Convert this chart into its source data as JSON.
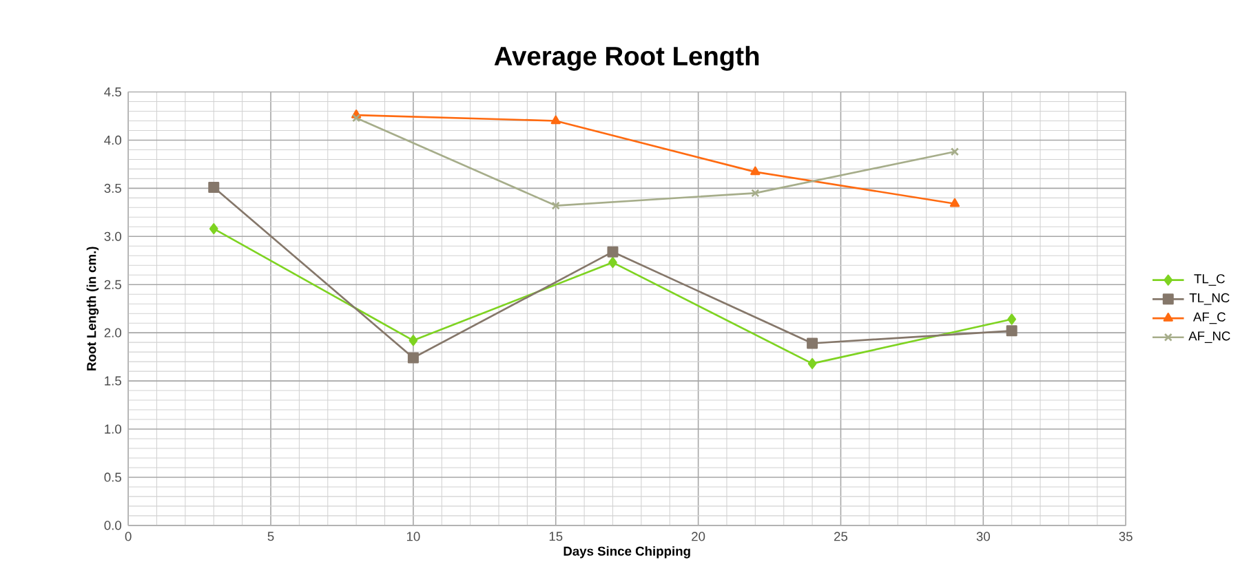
{
  "chart_data": {
    "type": "line",
    "title": "Average Root Length",
    "xlabel": "Days Since Chipping",
    "ylabel": "Root Length (in cm.)",
    "xlim": [
      0,
      35
    ],
    "xticks": [
      0,
      5,
      10,
      15,
      20,
      25,
      30,
      35
    ],
    "ylim": [
      0,
      4.5
    ],
    "yticks": [
      {
        "value": 0,
        "label": "0.0"
      },
      {
        "value": 0.5,
        "label": "0.5"
      },
      {
        "value": 1,
        "label": "1.0"
      },
      {
        "value": 1.5,
        "label": "1.5"
      },
      {
        "value": 2,
        "label": "2.0"
      },
      {
        "value": 2.5,
        "label": "2.5"
      },
      {
        "value": 3,
        "label": "3.0"
      },
      {
        "value": 3.5,
        "label": "3.5"
      },
      {
        "value": 4,
        "label": "4.0"
      },
      {
        "value": 4.5,
        "label": "4.5"
      }
    ],
    "grid": true,
    "legend": "right",
    "series": [
      {
        "name": "TL_C",
        "color": "#7ed321",
        "marker": "diamond",
        "x": [
          3,
          10,
          17,
          24,
          31
        ],
        "values": [
          3.08,
          1.92,
          2.73,
          1.68,
          2.14
        ]
      },
      {
        "name": "TL_NC",
        "color": "#85776a",
        "marker": "square",
        "x": [
          3,
          10,
          17,
          24,
          31
        ],
        "values": [
          3.51,
          1.74,
          2.84,
          1.89,
          2.02
        ]
      },
      {
        "name": "AF_C",
        "color": "#ff6a10",
        "marker": "triangle",
        "x": [
          8,
          15,
          22,
          29
        ],
        "values": [
          4.26,
          4.2,
          3.67,
          3.34
        ]
      },
      {
        "name": "AF_NC",
        "color": "#a6ad8a",
        "marker": "cross",
        "x": [
          8,
          15,
          22,
          29
        ],
        "values": [
          4.23,
          3.32,
          3.45,
          3.88
        ]
      }
    ]
  }
}
